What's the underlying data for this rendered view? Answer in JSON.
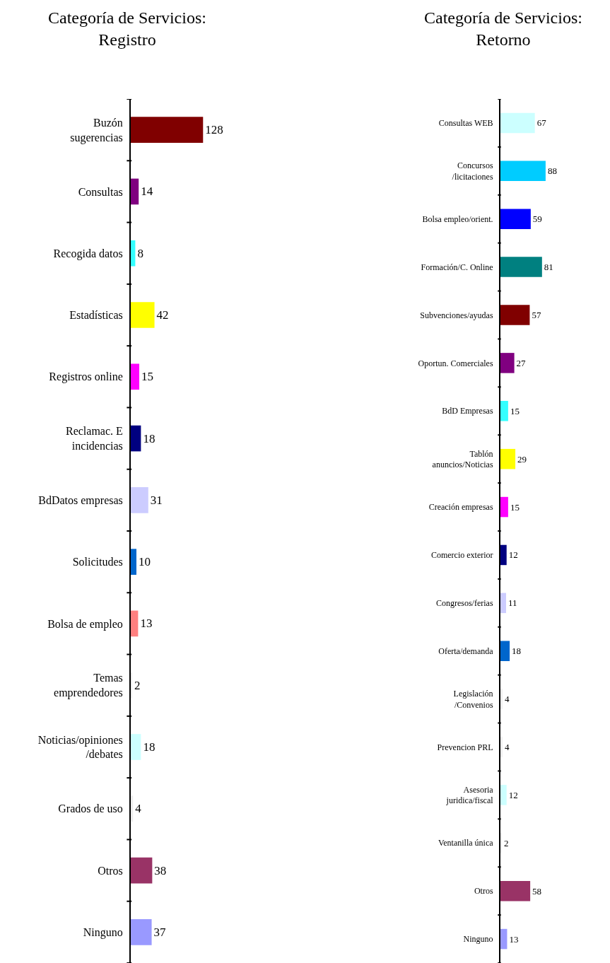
{
  "chart_data": [
    {
      "type": "bar",
      "orientation": "horizontal",
      "title": "Categoría de Servicios: Registro",
      "data_labels": true,
      "categories": [
        "Buzón sugerencias",
        "Consultas",
        "Recogida datos",
        "Estadísticas",
        "Registros online",
        "Reclamac. E incidencias",
        "BdDatos empresas",
        "Solicitudes",
        "Bolsa de empleo",
        "Temas emprendedores",
        "Noticias/opiniones/debates",
        "Grados de uso",
        "Otros",
        "Ninguno"
      ],
      "values": [
        128,
        14,
        8,
        42,
        15,
        18,
        31,
        10,
        13,
        2,
        18,
        4,
        38,
        37
      ],
      "colors": [
        "#800000",
        "#800080",
        "#33ffff",
        "#ffff00",
        "#ff00ff",
        "#000080",
        "#ccccff",
        "#0066cc",
        "#ff8080",
        "#eeeeee",
        "#ccffff",
        "#eeeeee",
        "#993366",
        "#9999ff"
      ]
    },
    {
      "type": "bar",
      "orientation": "horizontal",
      "title": "Categoría de Servicios: Retorno",
      "data_labels": true,
      "categories": [
        "Consultas WEB",
        "Concursos/licitaciones",
        "Bolsa empleo/orient.",
        "Formación/C. Online",
        "Subvenciones/ayudas",
        "Oportun. Comerciales",
        "BdD Empresas",
        "Tablón anuncios/Noticias",
        "Creación empresas",
        "Comercio exterior",
        "Congresos/ferias",
        "Oferta/demanda",
        "Legislación/Convenios",
        "Prevencion PRL",
        "Asesoria juridica/fiscal",
        "Ventanilla única",
        "Otros",
        "Ninguno"
      ],
      "values": [
        67,
        88,
        59,
        81,
        57,
        27,
        15,
        29,
        15,
        12,
        11,
        18,
        4,
        4,
        12,
        2,
        58,
        13
      ],
      "colors": [
        "#ccffff",
        "#00ccff",
        "#0000ff",
        "#008080",
        "#800000",
        "#800080",
        "#33ffff",
        "#ffff00",
        "#ff00ff",
        "#000080",
        "#ccccff",
        "#0066cc",
        "#eeeeee",
        "#eeeeee",
        "#ccffff",
        "#eeeeee",
        "#993366",
        "#9999ff"
      ]
    }
  ]
}
